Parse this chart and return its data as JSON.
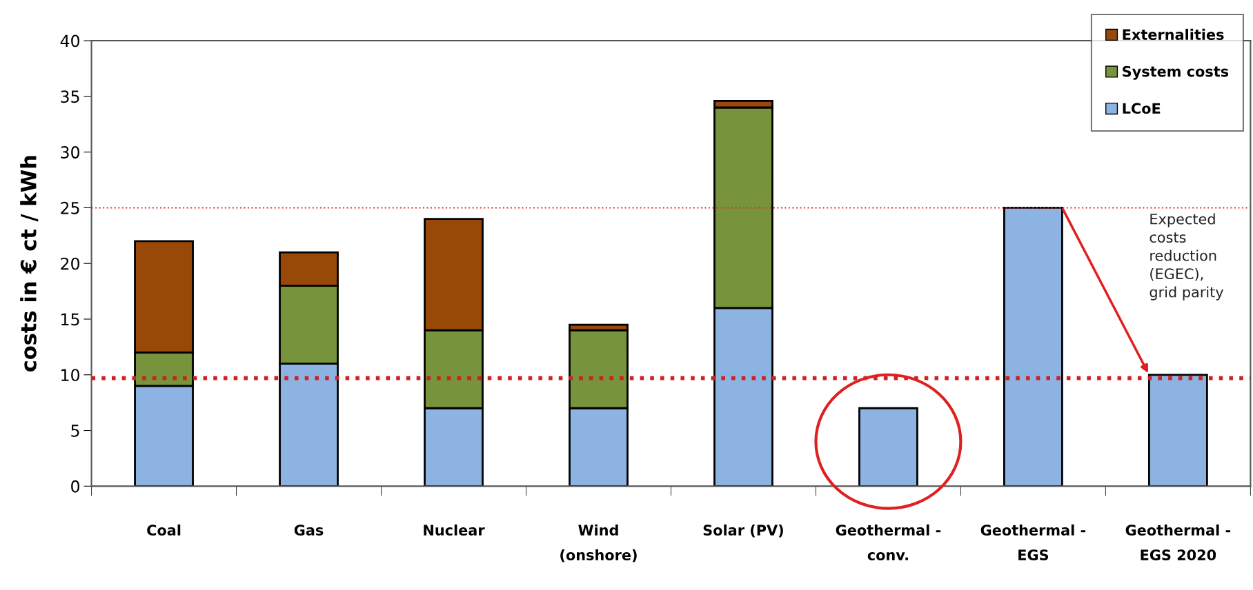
{
  "chart_data": {
    "type": "bar",
    "stacked": true,
    "ylabel": "costs in € ct / kWh",
    "categories": [
      "Coal",
      "Gas",
      "Nuclear",
      "Wind\n(onshore)",
      "Solar (PV)",
      "Geothermal -\nconv.",
      "Geothermal -\nEGS",
      "Geothermal -\nEGS 2020"
    ],
    "series": [
      {
        "name": "LCoE",
        "color": "#8db3e2",
        "values": [
          9,
          11,
          7,
          7,
          16,
          7,
          25,
          10
        ]
      },
      {
        "name": "System costs",
        "color": "#77933c",
        "values": [
          3,
          7,
          7,
          7,
          18,
          null,
          null,
          null
        ]
      },
      {
        "name": "Externalities",
        "color": "#984807",
        "values": [
          10,
          3,
          10,
          0.5,
          0.6,
          null,
          null,
          null
        ]
      }
    ],
    "ylim": [
      0,
      40
    ],
    "yticks": [
      0,
      5,
      10,
      15,
      20,
      25,
      30,
      35,
      40
    ],
    "ref_lines": [
      {
        "axis": "y",
        "value": 25,
        "color": "#e03030",
        "line_style": "dotted"
      },
      {
        "axis": "y",
        "value": 9.7,
        "color": "#d02020",
        "line_style": "dotted"
      }
    ],
    "annotations": [
      "Expected\ncosts\nreduction\n(EGEC),\ngrid parity"
    ],
    "legend": "top right",
    "grid": false
  }
}
